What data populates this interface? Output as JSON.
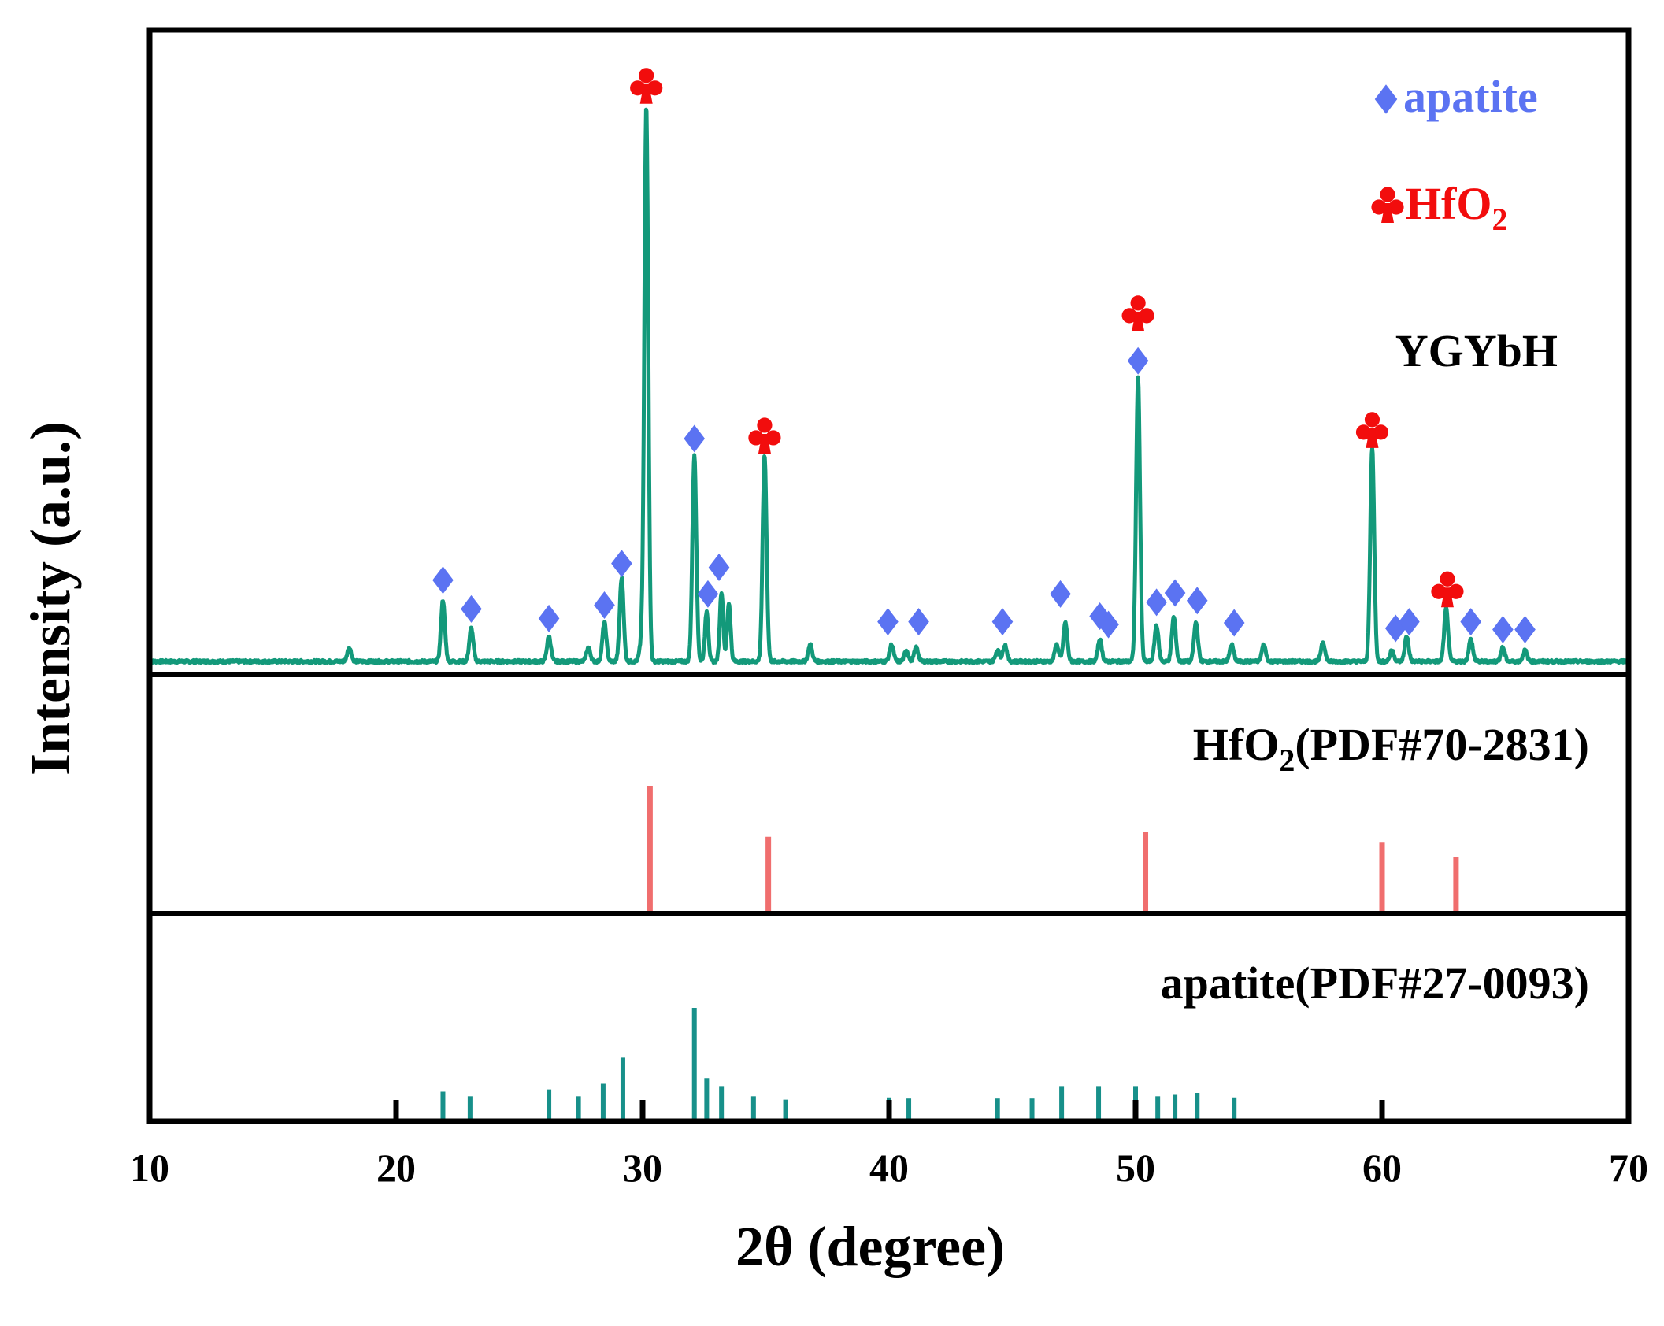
{
  "colors": {
    "trace": "#13997A",
    "apatite_marker": "#5B73F2",
    "hfo2_marker": "#F20D0D",
    "hfo2_ref": "#F06E6E",
    "apatite_ref": "#17908A",
    "axis": "#000000"
  },
  "legend": {
    "apatite_label": "apatite",
    "hfo2_label": "HfO",
    "hfo2_sub": "2",
    "apatite_icon": "diamond-icon",
    "hfo2_icon": "club-icon"
  },
  "chart_data": {
    "type": "line",
    "title": "",
    "xlabel": "2θ (degree)",
    "ylabel": "Intensity (a.u.)",
    "xlim": [
      10,
      70
    ],
    "xticks": [
      10,
      20,
      30,
      40,
      50,
      60,
      70
    ],
    "grid": false,
    "panels": [
      {
        "name": "YGYbH",
        "label": "YGYbH",
        "kind": "pattern",
        "peaks": [
          {
            "x": 18.1,
            "y": 2.5,
            "w": 0.08
          },
          {
            "x": 21.9,
            "y": 11,
            "w": 0.08
          },
          {
            "x": 23.05,
            "y": 6,
            "w": 0.08
          },
          {
            "x": 26.2,
            "y": 4.5,
            "w": 0.08
          },
          {
            "x": 27.8,
            "y": 2.5,
            "w": 0.08
          },
          {
            "x": 28.45,
            "y": 7,
            "w": 0.08
          },
          {
            "x": 29.15,
            "y": 15,
            "w": 0.08
          },
          {
            "x": 29.95,
            "y": 3,
            "w": 0.08
          },
          {
            "x": 30.15,
            "y": 100,
            "w": 0.08
          },
          {
            "x": 32.1,
            "y": 37,
            "w": 0.08
          },
          {
            "x": 32.6,
            "y": 9,
            "w": 0.07
          },
          {
            "x": 33.2,
            "y": 12.5,
            "w": 0.07
          },
          {
            "x": 33.5,
            "y": 10.5,
            "w": 0.07
          },
          {
            "x": 34.95,
            "y": 37,
            "w": 0.08
          },
          {
            "x": 36.8,
            "y": 3,
            "w": 0.08
          },
          {
            "x": 40.1,
            "y": 3,
            "w": 0.08
          },
          {
            "x": 40.7,
            "y": 2,
            "w": 0.08
          },
          {
            "x": 41.1,
            "y": 2.5,
            "w": 0.08
          },
          {
            "x": 44.4,
            "y": 2,
            "w": 0.08
          },
          {
            "x": 44.7,
            "y": 3,
            "w": 0.08
          },
          {
            "x": 46.8,
            "y": 3,
            "w": 0.08
          },
          {
            "x": 47.15,
            "y": 7,
            "w": 0.08
          },
          {
            "x": 48.55,
            "y": 4,
            "w": 0.08
          },
          {
            "x": 50.1,
            "y": 51,
            "w": 0.08
          },
          {
            "x": 50.85,
            "y": 6.5,
            "w": 0.08
          },
          {
            "x": 51.55,
            "y": 8,
            "w": 0.08
          },
          {
            "x": 52.45,
            "y": 7,
            "w": 0.08
          },
          {
            "x": 53.9,
            "y": 3,
            "w": 0.08
          },
          {
            "x": 55.2,
            "y": 3,
            "w": 0.08
          },
          {
            "x": 57.6,
            "y": 3.5,
            "w": 0.08
          },
          {
            "x": 59.6,
            "y": 38.5,
            "w": 0.08
          },
          {
            "x": 60.4,
            "y": 2,
            "w": 0.08
          },
          {
            "x": 61.0,
            "y": 4.5,
            "w": 0.08
          },
          {
            "x": 62.6,
            "y": 9.5,
            "w": 0.08
          },
          {
            "x": 63.6,
            "y": 4,
            "w": 0.08
          },
          {
            "x": 64.9,
            "y": 2.5,
            "w": 0.08
          },
          {
            "x": 65.8,
            "y": 2,
            "w": 0.08
          }
        ],
        "markers": [
          {
            "phase": "apatite",
            "x": 21.9,
            "y": 15.5
          },
          {
            "phase": "apatite",
            "x": 23.05,
            "y": 10.3
          },
          {
            "phase": "apatite",
            "x": 26.2,
            "y": 8.6
          },
          {
            "phase": "apatite",
            "x": 28.45,
            "y": 11
          },
          {
            "phase": "apatite",
            "x": 29.15,
            "y": 18.5
          },
          {
            "phase": "hfo2",
            "x": 30.15,
            "y": 104
          },
          {
            "phase": "apatite",
            "x": 32.1,
            "y": 41
          },
          {
            "phase": "apatite",
            "x": 32.65,
            "y": 13
          },
          {
            "phase": "apatite",
            "x": 33.1,
            "y": 17.8
          },
          {
            "phase": "hfo2",
            "x": 34.95,
            "y": 41
          },
          {
            "phase": "apatite",
            "x": 39.95,
            "y": 8
          },
          {
            "phase": "apatite",
            "x": 41.2,
            "y": 8
          },
          {
            "phase": "apatite",
            "x": 44.6,
            "y": 8
          },
          {
            "phase": "apatite",
            "x": 46.95,
            "y": 13
          },
          {
            "phase": "apatite",
            "x": 48.55,
            "y": 9
          },
          {
            "phase": "apatite",
            "x": 48.9,
            "y": 7.5
          },
          {
            "phase": "hfo2",
            "x": 50.1,
            "y": 63
          },
          {
            "phase": "apatite",
            "x": 50.1,
            "y": 55
          },
          {
            "phase": "apatite",
            "x": 50.85,
            "y": 11.5
          },
          {
            "phase": "apatite",
            "x": 51.6,
            "y": 13.2
          },
          {
            "phase": "apatite",
            "x": 52.5,
            "y": 11.8
          },
          {
            "phase": "apatite",
            "x": 54.0,
            "y": 7.8
          },
          {
            "phase": "hfo2",
            "x": 59.6,
            "y": 42
          },
          {
            "phase": "apatite",
            "x": 60.55,
            "y": 6.8
          },
          {
            "phase": "apatite",
            "x": 61.1,
            "y": 8
          },
          {
            "phase": "hfo2",
            "x": 62.65,
            "y": 13.3
          },
          {
            "phase": "apatite",
            "x": 63.6,
            "y": 8
          },
          {
            "phase": "apatite",
            "x": 64.9,
            "y": 6.6
          },
          {
            "phase": "apatite",
            "x": 65.8,
            "y": 6.6
          }
        ]
      },
      {
        "name": "HfO2 reference",
        "label": "HfO",
        "label_sub": "2",
        "label_suffix": "(PDF#70-2831)",
        "kind": "sticks",
        "sticks": [
          {
            "x": 30.3,
            "y": 100
          },
          {
            "x": 35.1,
            "y": 60
          },
          {
            "x": 50.4,
            "y": 64
          },
          {
            "x": 60.0,
            "y": 56
          },
          {
            "x": 63.0,
            "y": 44
          }
        ]
      },
      {
        "name": "apatite reference",
        "label": "apatite(PDF#27-0093)",
        "kind": "sticks",
        "sticks": [
          {
            "x": 21.9,
            "y": 26
          },
          {
            "x": 23.0,
            "y": 22
          },
          {
            "x": 26.2,
            "y": 28
          },
          {
            "x": 27.4,
            "y": 22
          },
          {
            "x": 28.4,
            "y": 33
          },
          {
            "x": 29.2,
            "y": 56
          },
          {
            "x": 32.1,
            "y": 100
          },
          {
            "x": 32.6,
            "y": 38
          },
          {
            "x": 33.2,
            "y": 31
          },
          {
            "x": 34.5,
            "y": 22
          },
          {
            "x": 35.8,
            "y": 19
          },
          {
            "x": 40.0,
            "y": 21
          },
          {
            "x": 40.8,
            "y": 20
          },
          {
            "x": 44.4,
            "y": 20
          },
          {
            "x": 45.8,
            "y": 20
          },
          {
            "x": 47.0,
            "y": 31
          },
          {
            "x": 48.5,
            "y": 31
          },
          {
            "x": 50.0,
            "y": 31
          },
          {
            "x": 50.9,
            "y": 22
          },
          {
            "x": 51.6,
            "y": 24
          },
          {
            "x": 52.5,
            "y": 25
          },
          {
            "x": 54.0,
            "y": 21
          }
        ]
      }
    ]
  }
}
